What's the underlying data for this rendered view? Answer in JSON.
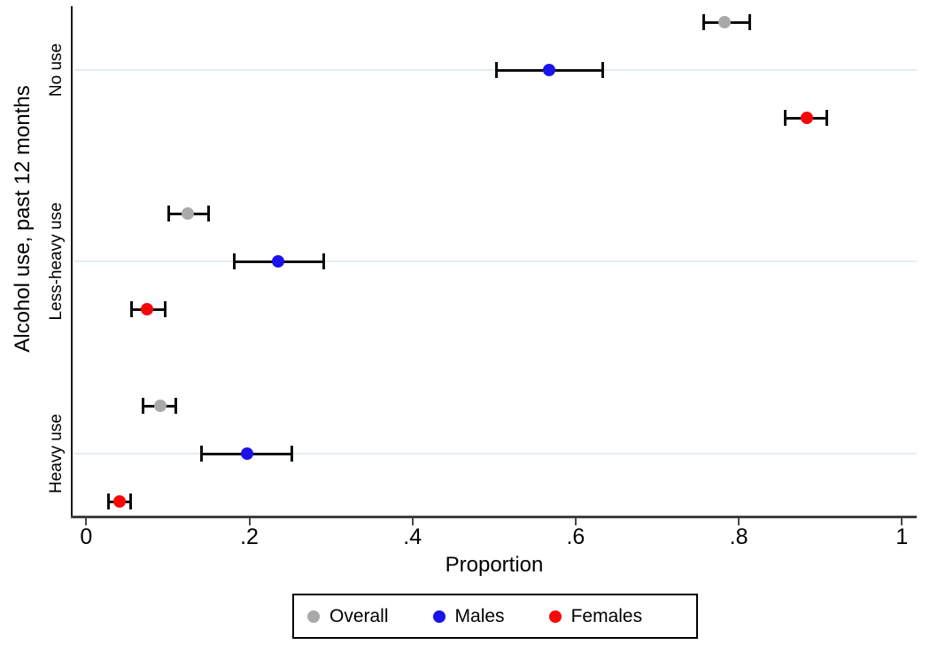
{
  "chart_data": {
    "type": "scatter",
    "subtype": "horizontal dot plot with 95% CI error bars (Stata style)",
    "title": "",
    "xlabel": "Proportion",
    "ylabel": "Alcohol use, past 12 months",
    "xlim": [
      0,
      1
    ],
    "xticks": [
      0,
      0.2,
      0.4,
      0.6,
      0.8,
      1
    ],
    "xtick_labels": [
      "0",
      ".2",
      ".4",
      ".6",
      ".8",
      "1"
    ],
    "grid": "horizontal gridline at each category center",
    "legend_position": "bottom center, boxed",
    "categories": [
      "No use",
      "Less-heavy use",
      "Heavy use"
    ],
    "series": [
      {
        "name": "Overall",
        "color": "#a9a9a9",
        "values": [
          0.783,
          0.125,
          0.091
        ],
        "ci_low": [
          0.757,
          0.101,
          0.07
        ],
        "ci_high": [
          0.814,
          0.15,
          0.11
        ]
      },
      {
        "name": "Males",
        "color": "#1a13ea",
        "values": [
          0.568,
          0.235,
          0.197
        ],
        "ci_low": [
          0.503,
          0.182,
          0.141
        ],
        "ci_high": [
          0.633,
          0.291,
          0.252
        ]
      },
      {
        "name": "Females",
        "color": "#f70808",
        "values": [
          0.883,
          0.075,
          0.041
        ],
        "ci_low": [
          0.857,
          0.056,
          0.027
        ],
        "ci_high": [
          0.908,
          0.097,
          0.054
        ]
      }
    ],
    "colors": {
      "error_bar": "#0d0d0d",
      "gridline": "#e2edf0",
      "axis_line": "#3f3f3f",
      "background": "#ffffff"
    }
  }
}
